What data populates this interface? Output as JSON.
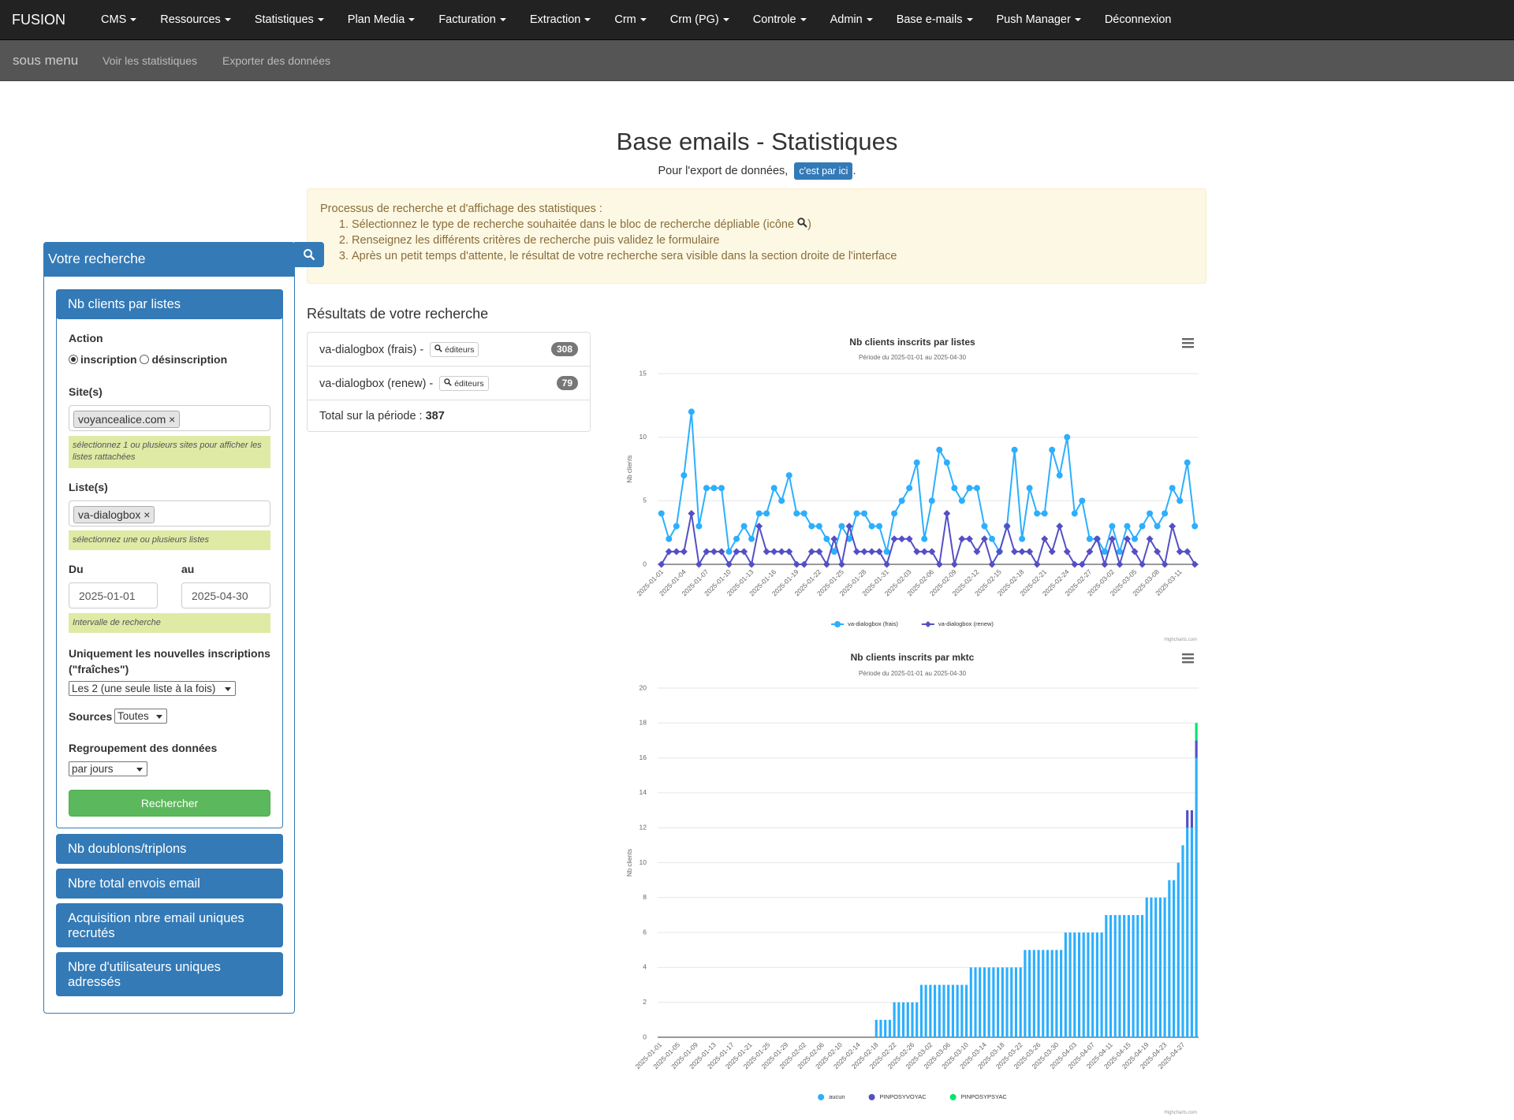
{
  "nav": {
    "brand": "FUSION",
    "items": [
      "CMS",
      "Ressources",
      "Statistiques",
      "Plan Media",
      "Facturation",
      "Extraction",
      "Crm",
      "Crm (PG)",
      "Controle",
      "Admin",
      "Base e-mails",
      "Push Manager"
    ],
    "logout": "Déconnexion"
  },
  "submenu": {
    "title": "sous menu",
    "links": [
      "Voir les statistiques",
      "Exporter des données"
    ]
  },
  "header": {
    "title": "Base emails - Statistiques",
    "export_text": "Pour l'export de données,",
    "export_button": "c'est par ici",
    "export_end": "."
  },
  "info": {
    "intro": "Processus de recherche et d'affichage des statistiques :",
    "steps": [
      {
        "text": "Sélectionnez le type de recherche souhaitée dans le bloc de recherche dépliable (icône",
        "suffix": ")"
      },
      {
        "text": "Renseignez les différents critères de recherche puis validez le formulaire"
      },
      {
        "text": "Après un petit temps d'attente, le résultat de votre recherche sera visible dans la section droite de l'interface"
      }
    ]
  },
  "sidebar": {
    "title": "Votre recherche",
    "panel": {
      "title": "Nb clients par listes",
      "action_label": "Action",
      "options": [
        "inscription",
        "désinscription"
      ],
      "sites_label": "Site(s)",
      "site_tag": "voyancealice.com",
      "remove": "×",
      "sites_help": "sélectionnez 1 ou plusieurs sites pour afficher les listes rattachées",
      "lists_label": "Liste(s)",
      "list_tag": "va-dialogbox",
      "lists_help": "sélectionnez une ou plusieurs listes",
      "from_label": "Du",
      "to_label": "au",
      "from": "2025-01-01",
      "to": "2025-04-30",
      "range_help": "Intervalle de recherche",
      "fresh_label": "Uniquement les nouvelles inscriptions (\"fraîches\")",
      "fresh_value": "Les 2 (une seule liste à la fois)",
      "sources_label": "Sources",
      "sources_value": "Toutes",
      "group_label": "Regroupement des données",
      "group_value": "par jours",
      "submit": "Rechercher"
    },
    "other_panels": [
      "Nb doublons/triplons",
      "Nbre total envois email",
      "Acquisition nbre email uniques recrutés",
      "Nbre d'utilisateurs uniques adressés"
    ]
  },
  "results": {
    "title": "Résultats de votre recherche",
    "items": [
      {
        "label": "va-dialogbox (frais) -",
        "button": "éditeurs",
        "count": 308
      },
      {
        "label": "va-dialogbox (renew) -",
        "button": "éditeurs",
        "count": 79
      }
    ],
    "total_label": "Total sur la période :",
    "total": 387
  },
  "chart_data": [
    {
      "type": "line",
      "title": "Nb clients inscrits par listes",
      "subtitle": "Période du 2025-01-01 au 2025-04-30",
      "y_label": "Nb clients",
      "credits": "Highcharts.com",
      "grid": true,
      "legend": "bottom",
      "categories": [
        "2025-01-01",
        null,
        null,
        "2025-01-04",
        null,
        null,
        "2025-01-07",
        null,
        null,
        "2025-01-10",
        null,
        null,
        "2025-01-13",
        null,
        null,
        "2025-01-16",
        null,
        null,
        "2025-01-19",
        null,
        null,
        "2025-01-22",
        null,
        null,
        "2025-01-25",
        null,
        null,
        "2025-01-28",
        null,
        null,
        "2025-01-31",
        null,
        null,
        "2025-02-03",
        null,
        null,
        "2025-02-06",
        null,
        null,
        "2025-02-09",
        null,
        null,
        "2025-02-12",
        null,
        null,
        "2025-02-15",
        null,
        null,
        "2025-02-18",
        null,
        null,
        "2025-02-21",
        null,
        null,
        "2025-02-24",
        null,
        null,
        "2025-02-27",
        null,
        null,
        "2025-03-02",
        null,
        null,
        "2025-03-05",
        null,
        null,
        "2025-03-08",
        null,
        null,
        "2025-03-11",
        null,
        null
      ],
      "ylim": [
        0,
        15
      ],
      "yticks": [
        0,
        5,
        10,
        15
      ],
      "series": [
        {
          "name": "va-dialogbox (frais)",
          "color": "#2caffe",
          "marker": "circle",
          "values": [
            4,
            2,
            3,
            7,
            12,
            3,
            6,
            6,
            6,
            1,
            2,
            3,
            2,
            4,
            4,
            6,
            5,
            7,
            4,
            4,
            3,
            3,
            2,
            1,
            3,
            2,
            4,
            4,
            3,
            3,
            1,
            4,
            5,
            6,
            8,
            2,
            5,
            9,
            8,
            6,
            5,
            6,
            6,
            3,
            2,
            1,
            3,
            9,
            2,
            6,
            4,
            4,
            9,
            7,
            10,
            4,
            5,
            2,
            2,
            1,
            3,
            1,
            3,
            2,
            3,
            4,
            3,
            4,
            6,
            5,
            8,
            3
          ]
        },
        {
          "name": "va-dialogbox (renew)",
          "color": "#544fc5",
          "marker": "diamond",
          "values": [
            0,
            1,
            1,
            1,
            4,
            0,
            1,
            1,
            1,
            0,
            1,
            1,
            0,
            3,
            1,
            1,
            1,
            1,
            0,
            0,
            1,
            1,
            0,
            2,
            0,
            3,
            1,
            1,
            1,
            1,
            0,
            2,
            2,
            2,
            1,
            1,
            1,
            0,
            4,
            0,
            2,
            2,
            1,
            2,
            0,
            1,
            3,
            1,
            1,
            1,
            0,
            2,
            1,
            3,
            1,
            0,
            0,
            1,
            2,
            0,
            2,
            0,
            2,
            1,
            0,
            2,
            1,
            0,
            3,
            1,
            1,
            0
          ]
        }
      ]
    },
    {
      "type": "bar",
      "stacked": true,
      "title": "Nb clients inscrits par mktc",
      "subtitle": "Période du 2025-01-01 au 2025-04-30",
      "y_label": "Nb clients",
      "credits": "Highcharts.com",
      "grid": true,
      "legend": "bottom",
      "categories": [
        "2025-01-01",
        null,
        null,
        null,
        "2025-01-05",
        null,
        null,
        null,
        "2025-01-09",
        null,
        null,
        null,
        "2025-01-13",
        null,
        null,
        null,
        "2025-01-17",
        null,
        null,
        null,
        "2025-01-21",
        null,
        null,
        null,
        "2025-01-25",
        null,
        null,
        null,
        "2025-01-29",
        null,
        null,
        null,
        "2025-02-02",
        null,
        null,
        null,
        "2025-02-06",
        null,
        null,
        null,
        "2025-02-10",
        null,
        null,
        null,
        "2025-02-14",
        null,
        null,
        null,
        "2025-02-18",
        null,
        null,
        null,
        "2025-02-22",
        null,
        null,
        null,
        "2025-02-26",
        null,
        null,
        null,
        "2025-03-02",
        null,
        null,
        null,
        "2025-03-06",
        null,
        null,
        null,
        "2025-03-10",
        null,
        null,
        null,
        "2025-03-14",
        null,
        null,
        null,
        "2025-03-18",
        null,
        null,
        null,
        "2025-03-22",
        null,
        null,
        null,
        "2025-03-26",
        null,
        null,
        null,
        "2025-03-30",
        null,
        null,
        null,
        "2025-04-03",
        null,
        null,
        null,
        "2025-04-07",
        null,
        null,
        null,
        "2025-04-11",
        null,
        null,
        null,
        "2025-04-15",
        null,
        null,
        null,
        "2025-04-19",
        null,
        null,
        null,
        "2025-04-23",
        null,
        null,
        null,
        "2025-04-27",
        null,
        null,
        null
      ],
      "ylim": [
        0,
        20
      ],
      "yticks": [
        0,
        2,
        4,
        6,
        8,
        10,
        12,
        14,
        16,
        18,
        20
      ],
      "series": [
        {
          "name": "aucun",
          "color": "#2caffe",
          "values": [
            0,
            0,
            0,
            0,
            0,
            0,
            0,
            0,
            0,
            0,
            0,
            0,
            0,
            0,
            0,
            0,
            0,
            0,
            0,
            0,
            0,
            0,
            0,
            0,
            0,
            0,
            0,
            0,
            0,
            0,
            0,
            0,
            0,
            0,
            0,
            0,
            0,
            0,
            0,
            0,
            0,
            0,
            0,
            0,
            0,
            0,
            0,
            0,
            1,
            1,
            1,
            1,
            2,
            2,
            2,
            2,
            2,
            2,
            3,
            3,
            3,
            3,
            3,
            3,
            3,
            3,
            3,
            3,
            3,
            4,
            4,
            4,
            4,
            4,
            4,
            4,
            4,
            4,
            4,
            4,
            4,
            5,
            5,
            5,
            5,
            5,
            5,
            5,
            5,
            5,
            6,
            6,
            6,
            6,
            6,
            6,
            6,
            6,
            6,
            7,
            7,
            7,
            7,
            7,
            7,
            7,
            7,
            7,
            8,
            8,
            8,
            8,
            8,
            9,
            9,
            10,
            11,
            12,
            12,
            16
          ]
        },
        {
          "name": "PINPOSYVOYAC",
          "color": "#544fc5",
          "values": [
            0,
            0,
            0,
            0,
            0,
            0,
            0,
            0,
            0,
            0,
            0,
            0,
            0,
            0,
            0,
            0,
            0,
            0,
            0,
            0,
            0,
            0,
            0,
            0,
            0,
            0,
            0,
            0,
            0,
            0,
            0,
            0,
            0,
            0,
            0,
            0,
            0,
            0,
            0,
            0,
            0,
            0,
            0,
            0,
            0,
            0,
            0,
            0,
            0,
            0,
            0,
            0,
            0,
            0,
            0,
            0,
            0,
            0,
            0,
            0,
            0,
            0,
            0,
            0,
            0,
            0,
            0,
            0,
            0,
            0,
            0,
            0,
            0,
            0,
            0,
            0,
            0,
            0,
            0,
            0,
            0,
            0,
            0,
            0,
            0,
            0,
            0,
            0,
            0,
            0,
            0,
            0,
            0,
            0,
            0,
            0,
            0,
            0,
            0,
            0,
            0,
            0,
            0,
            0,
            0,
            0,
            0,
            0,
            0,
            0,
            0,
            0,
            0,
            0,
            0,
            0,
            0,
            1,
            1,
            1
          ]
        },
        {
          "name": "PINPOSYPSYAC",
          "color": "#00e272",
          "values": [
            0,
            0,
            0,
            0,
            0,
            0,
            0,
            0,
            0,
            0,
            0,
            0,
            0,
            0,
            0,
            0,
            0,
            0,
            0,
            0,
            0,
            0,
            0,
            0,
            0,
            0,
            0,
            0,
            0,
            0,
            0,
            0,
            0,
            0,
            0,
            0,
            0,
            0,
            0,
            0,
            0,
            0,
            0,
            0,
            0,
            0,
            0,
            0,
            0,
            0,
            0,
            0,
            0,
            0,
            0,
            0,
            0,
            0,
            0,
            0,
            0,
            0,
            0,
            0,
            0,
            0,
            0,
            0,
            0,
            0,
            0,
            0,
            0,
            0,
            0,
            0,
            0,
            0,
            0,
            0,
            0,
            0,
            0,
            0,
            0,
            0,
            0,
            0,
            0,
            0,
            0,
            0,
            0,
            0,
            0,
            0,
            0,
            0,
            0,
            0,
            0,
            0,
            0,
            0,
            0,
            0,
            0,
            0,
            0,
            0,
            0,
            0,
            0,
            0,
            0,
            0,
            0,
            0,
            0,
            1
          ]
        }
      ]
    }
  ]
}
